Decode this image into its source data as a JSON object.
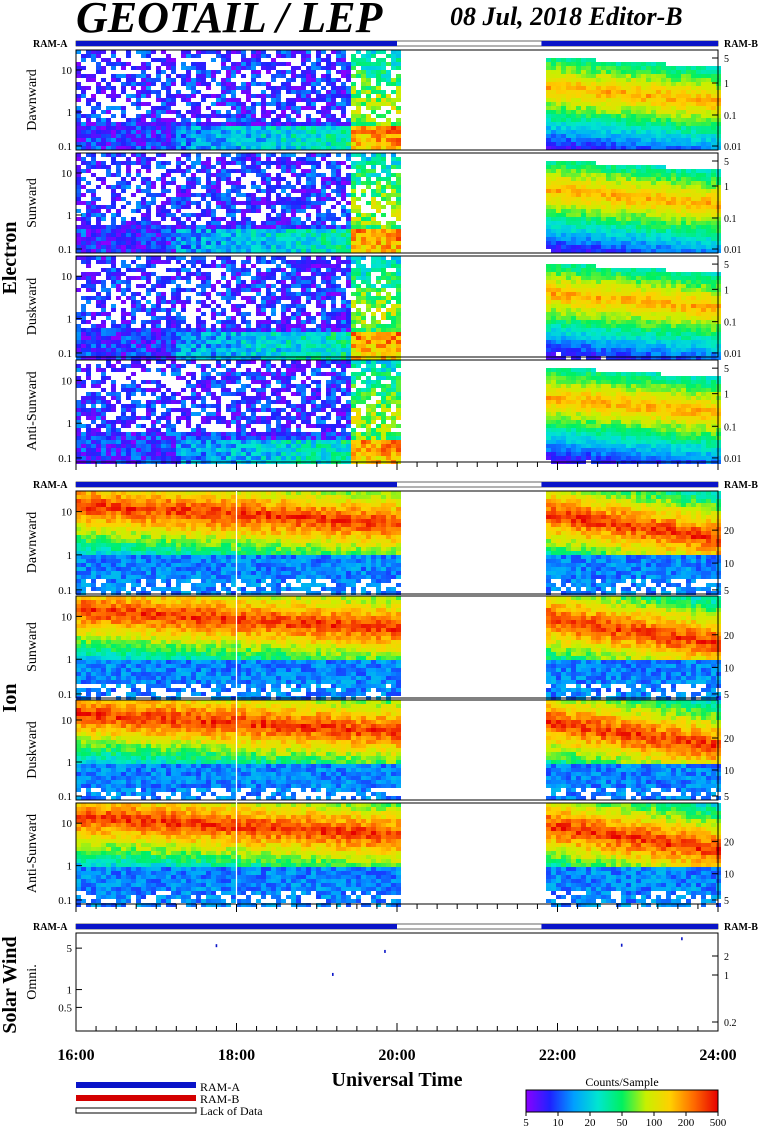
{
  "title": "GEOTAIL / LEP",
  "date_label": "08 Jul, 2018   Editor-B",
  "colors": {
    "ram_a": "#0a14c8",
    "ram_b": "#d40000",
    "lack_of_data": "#ffffff",
    "colorscale": [
      "#8b00ff",
      "#1e22ff",
      "#00a0ff",
      "#00e6d0",
      "#00f060",
      "#c8f000",
      "#ffd000",
      "#ff6a00",
      "#e60000"
    ]
  },
  "x_axis": {
    "label": "Universal Time",
    "ticks": [
      "16:00",
      "18:00",
      "20:00",
      "22:00",
      "24:00"
    ],
    "range_hours": [
      16,
      24
    ]
  },
  "legend": {
    "ram_a": "RAM-A",
    "ram_b": "RAM-B",
    "lack": "Lack of Data",
    "colorbar_title": "Counts/Sample",
    "colorbar_ticks": [
      "5",
      "10",
      "20",
      "50",
      "100",
      "200",
      "500"
    ]
  },
  "groups": {
    "electron": "Electron",
    "ion": "Ion",
    "solar_wind": "Solar Wind"
  },
  "mode_labels": {
    "left": "RAM-A",
    "right": "RAM-B"
  },
  "chart_data": [
    {
      "type": "heatmap",
      "species": "Electron",
      "panels": [
        "Dawnward",
        "Sunward",
        "Duskward",
        "Anti-Sunward"
      ],
      "y_left_ticks": [
        "10",
        "1",
        "0.1"
      ],
      "y_right_ticks": [
        "5",
        "1",
        "0.1",
        "0.01"
      ],
      "y_scale": "log",
      "data_intervals_hours": [
        [
          16.0,
          20.0
        ],
        [
          21.8,
          24.0
        ]
      ],
      "no_data_hours": [
        [
          20.0,
          21.8
        ]
      ]
    },
    {
      "type": "heatmap",
      "species": "Ion",
      "panels": [
        "Dawnward",
        "Sunward",
        "Duskward",
        "Anti-Sunward"
      ],
      "y_left_ticks": [
        "10",
        "1",
        "0.1"
      ],
      "y_right_ticks": [
        "20",
        "10",
        "5"
      ],
      "y_scale": "log",
      "data_intervals_hours": [
        [
          16.0,
          20.0
        ],
        [
          21.8,
          24.0
        ]
      ],
      "no_data_hours": [
        [
          20.0,
          21.8
        ]
      ]
    },
    {
      "type": "scatter",
      "species": "Solar Wind",
      "panels": [
        "Omni."
      ],
      "y_left_ticks": [
        "5",
        "1",
        "0.5"
      ],
      "y_right_ticks": [
        "2",
        "1",
        "0.2"
      ],
      "y_scale": "log",
      "points": [
        {
          "x": 17.75,
          "y": 5.5
        },
        {
          "x": 19.2,
          "y": 1.8
        },
        {
          "x": 19.85,
          "y": 4.4
        },
        {
          "x": 22.8,
          "y": 5.6
        },
        {
          "x": 23.55,
          "y": 7.2
        }
      ]
    }
  ]
}
